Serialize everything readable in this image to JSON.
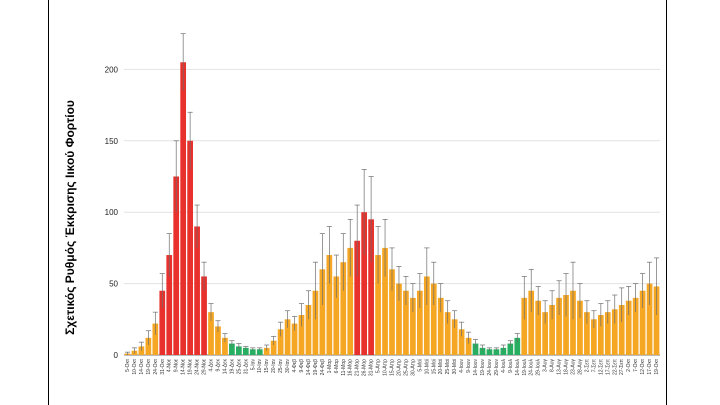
{
  "chart_data": {
    "type": "bar",
    "title": "",
    "ylabel": "Σχετικός Ρυθμός Έκκρισης Ιικού Φορτίου",
    "xlabel": "",
    "ylim": [
      0,
      250
    ],
    "yticks": [
      0,
      50,
      100,
      150,
      200
    ],
    "grid": true,
    "error_bars": true,
    "colors": {
      "red": "#e8302c",
      "orange": "#f5a623",
      "green": "#27ae60",
      "errorbar": "#6e6e6e"
    },
    "categories": [
      "5-Οκτ",
      "10-Οκτ",
      "14-Οκτ",
      "19-Οκτ",
      "24-Οκτ",
      "31-Οκτ",
      "4-Νοε",
      "9-Νοε",
      "14-Νοε",
      "19-Νοε",
      "24-Νοε",
      "29-Νοε",
      "4-Δεκ",
      "9-Δεκ",
      "14-Δεκ",
      "19-Δεκ",
      "25-Δεκ",
      "31-Δεκ",
      "5-Ιαν",
      "10-Ιαν",
      "15-Ιαν",
      "20-Ιαν",
      "25-Ιαν",
      "30-Ιαν",
      "4-Φεβ",
      "9-Φεβ",
      "14-Φεβ",
      "19-Φεβ",
      "24-Φεβ",
      "1-Μαρ",
      "6-Μαρ",
      "11-Μαρ",
      "16-Μαρ",
      "21-Μαρ",
      "26-Μαρ",
      "31-Μαρ",
      "5-Απρ",
      "10-Απρ",
      "15-Απρ",
      "20-Απρ",
      "25-Απρ",
      "30-Απρ",
      "5-Μαϊ",
      "10-Μαϊ",
      "15-Μαϊ",
      "20-Μαϊ",
      "25-Μαϊ",
      "30-Μαϊ",
      "4-Ιουν",
      "9-Ιουν",
      "14-Ιουν",
      "19-Ιουν",
      "24-Ιουν",
      "29-Ιουν",
      "4-Ιουλ",
      "9-Ιουλ",
      "14-Ιουλ",
      "19-Ιουλ",
      "24-Ιουλ",
      "29-Ιουλ",
      "3-Αυγ",
      "8-Αυγ",
      "13-Αυγ",
      "18-Αυγ",
      "23-Αυγ",
      "28-Αυγ",
      "2-Σεπ",
      "7-Σεπ",
      "12-Σεπ",
      "17-Σεπ",
      "22-Σεπ",
      "27-Σεπ",
      "2-Οκτ",
      "7-Οκτ",
      "12-Οκτ",
      "17-Οκτ",
      "19-Οκτ"
    ],
    "series": [
      {
        "values": [
          1,
          3,
          6,
          12,
          22,
          45,
          70,
          125,
          205,
          150,
          90,
          55,
          30,
          20,
          12,
          8,
          6,
          5,
          4,
          4,
          5,
          10,
          18,
          25,
          22,
          28,
          35,
          45,
          60,
          70,
          55,
          65,
          75,
          80,
          100,
          95,
          70,
          75,
          60,
          50,
          45,
          40,
          45,
          55,
          50,
          40,
          30,
          25,
          18,
          12,
          8,
          5,
          4,
          4,
          5,
          8,
          12,
          40,
          45,
          38,
          30,
          35,
          40,
          42,
          45,
          38,
          30,
          25,
          28,
          30,
          32,
          35,
          38,
          40,
          45,
          50,
          48
        ],
        "colors": [
          "orange",
          "orange",
          "orange",
          "orange",
          "orange",
          "red",
          "red",
          "red",
          "red",
          "red",
          "red",
          "red",
          "orange",
          "orange",
          "orange",
          "green",
          "green",
          "green",
          "green",
          "green",
          "orange",
          "orange",
          "orange",
          "orange",
          "orange",
          "orange",
          "orange",
          "orange",
          "orange",
          "orange",
          "orange",
          "orange",
          "orange",
          "red",
          "red",
          "red",
          "orange",
          "orange",
          "orange",
          "orange",
          "orange",
          "orange",
          "orange",
          "orange",
          "orange",
          "orange",
          "orange",
          "orange",
          "orange",
          "orange",
          "green",
          "green",
          "green",
          "green",
          "green",
          "green",
          "green",
          "orange",
          "orange",
          "orange",
          "orange",
          "orange",
          "orange",
          "orange",
          "orange",
          "orange",
          "orange",
          "orange",
          "orange",
          "orange",
          "orange",
          "orange",
          "orange",
          "orange",
          "orange",
          "orange",
          "orange"
        ],
        "errors": [
          1,
          2,
          3,
          5,
          8,
          12,
          15,
          25,
          20,
          20,
          15,
          10,
          6,
          4,
          3,
          2,
          2,
          1,
          1,
          1,
          2,
          3,
          5,
          6,
          5,
          8,
          10,
          20,
          25,
          20,
          15,
          20,
          20,
          25,
          30,
          30,
          20,
          20,
          15,
          12,
          10,
          10,
          12,
          20,
          15,
          10,
          8,
          6,
          5,
          4,
          3,
          2,
          1,
          1,
          2,
          2,
          3,
          15,
          15,
          10,
          8,
          10,
          12,
          15,
          20,
          12,
          8,
          6,
          8,
          8,
          10,
          12,
          10,
          10,
          12,
          15,
          20
        ]
      }
    ]
  }
}
